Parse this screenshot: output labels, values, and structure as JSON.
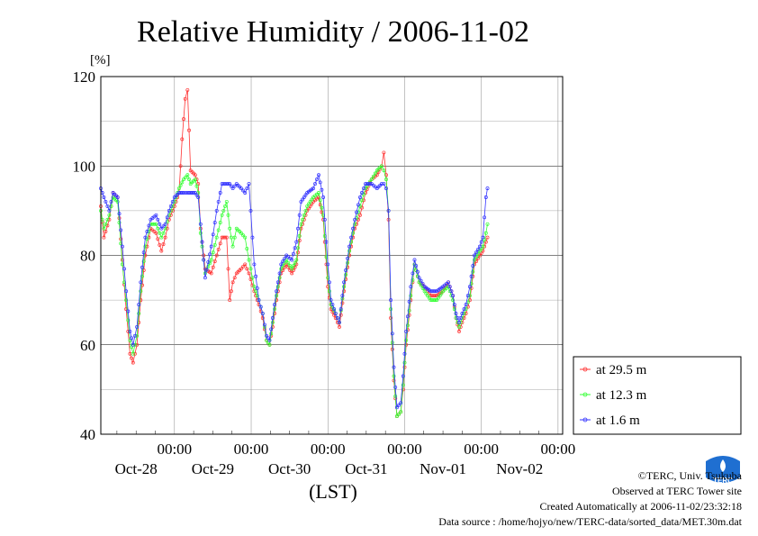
{
  "chart_data": {
    "type": "line",
    "title": "Relative Humidity / 2006-11-02",
    "unit_label": "[%]",
    "xlabel": "(LST)",
    "ylim": [
      40,
      120
    ],
    "yticks": [
      40,
      60,
      80,
      100,
      120
    ],
    "x_day_range": [
      -5.96,
      0.06
    ],
    "x_ticks": [
      {
        "day": -5,
        "time_label": "00:00",
        "date_label": "Oct-28"
      },
      {
        "day": -4,
        "time_label": "00:00",
        "date_label": "Oct-29"
      },
      {
        "day": -3,
        "time_label": "00:00",
        "date_label": "Oct-30"
      },
      {
        "day": -2,
        "time_label": "00:00",
        "date_label": "Oct-31"
      },
      {
        "day": -1,
        "time_label": "00:00",
        "date_label": "Nov-01"
      },
      {
        "day": 0,
        "time_label": "00:00",
        "date_label": "Nov-02"
      }
    ],
    "grid": true,
    "legend_position": "right-bottom",
    "series": [
      {
        "name": "at 29.5 m",
        "color": "#ff3333",
        "knots": [
          [
            -5.96,
            91
          ],
          [
            -5.92,
            84
          ],
          [
            -5.85,
            88
          ],
          [
            -5.8,
            94
          ],
          [
            -5.74,
            93
          ],
          [
            -5.68,
            79
          ],
          [
            -5.63,
            68
          ],
          [
            -5.58,
            58
          ],
          [
            -5.54,
            56
          ],
          [
            -5.49,
            60
          ],
          [
            -5.44,
            70
          ],
          [
            -5.38,
            80
          ],
          [
            -5.31,
            86
          ],
          [
            -5.24,
            85
          ],
          [
            -5.17,
            81
          ],
          [
            -5.12,
            84
          ],
          [
            -5.07,
            88
          ],
          [
            -5.0,
            91
          ],
          [
            -4.94,
            94
          ],
          [
            -4.9,
            106
          ],
          [
            -4.86,
            115
          ],
          [
            -4.83,
            117
          ],
          [
            -4.79,
            99
          ],
          [
            -4.73,
            98
          ],
          [
            -4.69,
            96
          ],
          [
            -4.66,
            86
          ],
          [
            -4.6,
            77
          ],
          [
            -4.52,
            76
          ],
          [
            -4.45,
            80
          ],
          [
            -4.38,
            84
          ],
          [
            -4.32,
            84
          ],
          [
            -4.28,
            70
          ],
          [
            -4.24,
            74
          ],
          [
            -4.19,
            76
          ],
          [
            -4.13,
            77
          ],
          [
            -4.08,
            78
          ],
          [
            -4.03,
            76
          ],
          [
            -3.96,
            72
          ],
          [
            -3.9,
            69
          ],
          [
            -3.85,
            66
          ],
          [
            -3.8,
            61
          ],
          [
            -3.76,
            60
          ],
          [
            -3.72,
            64
          ],
          [
            -3.67,
            70
          ],
          [
            -3.61,
            76
          ],
          [
            -3.54,
            78
          ],
          [
            -3.47,
            76
          ],
          [
            -3.41,
            78
          ],
          [
            -3.35,
            86
          ],
          [
            -3.27,
            90
          ],
          [
            -3.19,
            92
          ],
          [
            -3.12,
            93
          ],
          [
            -3.06,
            88
          ],
          [
            -3.0,
            73
          ],
          [
            -2.96,
            68
          ],
          [
            -2.9,
            66
          ],
          [
            -2.85,
            64
          ],
          [
            -2.79,
            72
          ],
          [
            -2.72,
            80
          ],
          [
            -2.65,
            86
          ],
          [
            -2.58,
            89
          ],
          [
            -2.51,
            94
          ],
          [
            -2.43,
            97
          ],
          [
            -2.36,
            98
          ],
          [
            -2.3,
            100
          ],
          [
            -2.27,
            103
          ],
          [
            -2.24,
            98
          ],
          [
            -2.21,
            88
          ],
          [
            -2.18,
            66
          ],
          [
            -2.14,
            52
          ],
          [
            -2.1,
            44
          ],
          [
            -2.05,
            45
          ],
          [
            -2.02,
            50
          ],
          [
            -1.98,
            60
          ],
          [
            -1.92,
            70
          ],
          [
            -1.87,
            78
          ],
          [
            -1.81,
            74
          ],
          [
            -1.74,
            73
          ],
          [
            -1.66,
            71
          ],
          [
            -1.58,
            71
          ],
          [
            -1.5,
            72
          ],
          [
            -1.43,
            74
          ],
          [
            -1.37,
            71
          ],
          [
            -1.33,
            66
          ],
          [
            -1.29,
            63
          ],
          [
            -1.25,
            65
          ],
          [
            -1.2,
            67
          ],
          [
            -1.15,
            70
          ],
          [
            -1.09,
            78
          ],
          [
            -1.02,
            80
          ],
          [
            -0.98,
            81
          ],
          [
            -0.94,
            83
          ],
          [
            -0.92,
            84
          ]
        ]
      },
      {
        "name": "at 12.3 m",
        "color": "#33ff33",
        "knots": [
          [
            -5.96,
            90
          ],
          [
            -5.92,
            86
          ],
          [
            -5.85,
            89
          ],
          [
            -5.8,
            93
          ],
          [
            -5.74,
            92
          ],
          [
            -5.68,
            78
          ],
          [
            -5.63,
            70
          ],
          [
            -5.58,
            61
          ],
          [
            -5.54,
            58
          ],
          [
            -5.49,
            62
          ],
          [
            -5.44,
            72
          ],
          [
            -5.38,
            82
          ],
          [
            -5.31,
            87
          ],
          [
            -5.24,
            87
          ],
          [
            -5.17,
            84
          ],
          [
            -5.12,
            86
          ],
          [
            -5.07,
            89
          ],
          [
            -5.0,
            92
          ],
          [
            -4.94,
            95
          ],
          [
            -4.88,
            97
          ],
          [
            -4.83,
            98
          ],
          [
            -4.79,
            96
          ],
          [
            -4.73,
            97
          ],
          [
            -4.69,
            94
          ],
          [
            -4.66,
            85
          ],
          [
            -4.6,
            76
          ],
          [
            -4.52,
            79
          ],
          [
            -4.45,
            84
          ],
          [
            -4.38,
            89
          ],
          [
            -4.32,
            92
          ],
          [
            -4.28,
            86
          ],
          [
            -4.24,
            82
          ],
          [
            -4.19,
            86
          ],
          [
            -4.13,
            85
          ],
          [
            -4.08,
            84
          ],
          [
            -4.03,
            79
          ],
          [
            -3.96,
            73
          ],
          [
            -3.9,
            70
          ],
          [
            -3.85,
            67
          ],
          [
            -3.8,
            61
          ],
          [
            -3.76,
            60
          ],
          [
            -3.72,
            65
          ],
          [
            -3.67,
            71
          ],
          [
            -3.61,
            77
          ],
          [
            -3.54,
            79
          ],
          [
            -3.47,
            77
          ],
          [
            -3.41,
            79
          ],
          [
            -3.35,
            87
          ],
          [
            -3.27,
            91
          ],
          [
            -3.19,
            93
          ],
          [
            -3.12,
            94
          ],
          [
            -3.06,
            89
          ],
          [
            -3.0,
            75
          ],
          [
            -2.96,
            69
          ],
          [
            -2.9,
            67
          ],
          [
            -2.85,
            65
          ],
          [
            -2.79,
            73
          ],
          [
            -2.72,
            81
          ],
          [
            -2.65,
            87
          ],
          [
            -2.58,
            91
          ],
          [
            -2.51,
            95
          ],
          [
            -2.43,
            97
          ],
          [
            -2.36,
            99
          ],
          [
            -2.3,
            100
          ],
          [
            -2.27,
            99
          ],
          [
            -2.24,
            97
          ],
          [
            -2.21,
            90
          ],
          [
            -2.18,
            68
          ],
          [
            -2.14,
            53
          ],
          [
            -2.1,
            44
          ],
          [
            -2.05,
            45
          ],
          [
            -2.02,
            51
          ],
          [
            -1.98,
            61
          ],
          [
            -1.92,
            71
          ],
          [
            -1.87,
            78
          ],
          [
            -1.81,
            74
          ],
          [
            -1.74,
            72
          ],
          [
            -1.66,
            70
          ],
          [
            -1.58,
            70
          ],
          [
            -1.5,
            72
          ],
          [
            -1.43,
            73
          ],
          [
            -1.37,
            70
          ],
          [
            -1.33,
            66
          ],
          [
            -1.29,
            64
          ],
          [
            -1.25,
            66
          ],
          [
            -1.2,
            68
          ],
          [
            -1.15,
            71
          ],
          [
            -1.09,
            79
          ],
          [
            -1.02,
            81
          ],
          [
            -0.98,
            82
          ],
          [
            -0.94,
            85
          ],
          [
            -0.92,
            87
          ]
        ]
      },
      {
        "name": "at 1.6 m",
        "color": "#3333ff",
        "knots": [
          [
            -5.96,
            95
          ],
          [
            -5.92,
            93
          ],
          [
            -5.85,
            90
          ],
          [
            -5.8,
            94
          ],
          [
            -5.74,
            93
          ],
          [
            -5.68,
            82
          ],
          [
            -5.63,
            72
          ],
          [
            -5.58,
            63
          ],
          [
            -5.54,
            60
          ],
          [
            -5.49,
            64
          ],
          [
            -5.44,
            74
          ],
          [
            -5.38,
            84
          ],
          [
            -5.31,
            88
          ],
          [
            -5.24,
            89
          ],
          [
            -5.17,
            86
          ],
          [
            -5.12,
            87
          ],
          [
            -5.07,
            90
          ],
          [
            -5.0,
            93
          ],
          [
            -4.94,
            94
          ],
          [
            -4.88,
            94
          ],
          [
            -4.83,
            94
          ],
          [
            -4.79,
            94
          ],
          [
            -4.73,
            94
          ],
          [
            -4.69,
            93
          ],
          [
            -4.66,
            87
          ],
          [
            -4.6,
            75
          ],
          [
            -4.52,
            82
          ],
          [
            -4.45,
            90
          ],
          [
            -4.38,
            96
          ],
          [
            -4.32,
            96
          ],
          [
            -4.28,
            96
          ],
          [
            -4.24,
            95
          ],
          [
            -4.19,
            96
          ],
          [
            -4.13,
            95
          ],
          [
            -4.08,
            94
          ],
          [
            -4.03,
            96
          ],
          [
            -3.96,
            78
          ],
          [
            -3.9,
            70
          ],
          [
            -3.85,
            67
          ],
          [
            -3.8,
            62
          ],
          [
            -3.76,
            61
          ],
          [
            -3.72,
            66
          ],
          [
            -3.67,
            72
          ],
          [
            -3.61,
            78
          ],
          [
            -3.54,
            80
          ],
          [
            -3.47,
            79
          ],
          [
            -3.41,
            83
          ],
          [
            -3.35,
            92
          ],
          [
            -3.27,
            94
          ],
          [
            -3.19,
            95
          ],
          [
            -3.12,
            98
          ],
          [
            -3.06,
            93
          ],
          [
            -3.0,
            78
          ],
          [
            -2.96,
            70
          ],
          [
            -2.9,
            67
          ],
          [
            -2.85,
            65
          ],
          [
            -2.79,
            74
          ],
          [
            -2.72,
            82
          ],
          [
            -2.65,
            88
          ],
          [
            -2.58,
            93
          ],
          [
            -2.51,
            96
          ],
          [
            -2.43,
            96
          ],
          [
            -2.36,
            95
          ],
          [
            -2.3,
            96
          ],
          [
            -2.27,
            96
          ],
          [
            -2.24,
            95
          ],
          [
            -2.21,
            90
          ],
          [
            -2.18,
            70
          ],
          [
            -2.14,
            55
          ],
          [
            -2.1,
            46
          ],
          [
            -2.05,
            47
          ],
          [
            -2.02,
            53
          ],
          [
            -1.98,
            63
          ],
          [
            -1.92,
            73
          ],
          [
            -1.87,
            79
          ],
          [
            -1.81,
            75
          ],
          [
            -1.74,
            73
          ],
          [
            -1.66,
            72
          ],
          [
            -1.58,
            72
          ],
          [
            -1.5,
            73
          ],
          [
            -1.43,
            74
          ],
          [
            -1.37,
            71
          ],
          [
            -1.33,
            67
          ],
          [
            -1.29,
            65
          ],
          [
            -1.25,
            67
          ],
          [
            -1.2,
            69
          ],
          [
            -1.15,
            73
          ],
          [
            -1.09,
            80
          ],
          [
            -1.02,
            82
          ],
          [
            -0.98,
            84
          ],
          [
            -0.94,
            93
          ],
          [
            -0.92,
            95
          ]
        ]
      }
    ]
  },
  "footer": {
    "copyright": "©TERC, Univ. Tsukuba",
    "observed": "Observed at TERC Tower site",
    "created": "Created Automatically at 2006-11-02/23:32:18",
    "source": "Data source : /home/hojyo/new/TERC-data/sorted_data/MET.30m.dat"
  },
  "logo_text": "TERC"
}
